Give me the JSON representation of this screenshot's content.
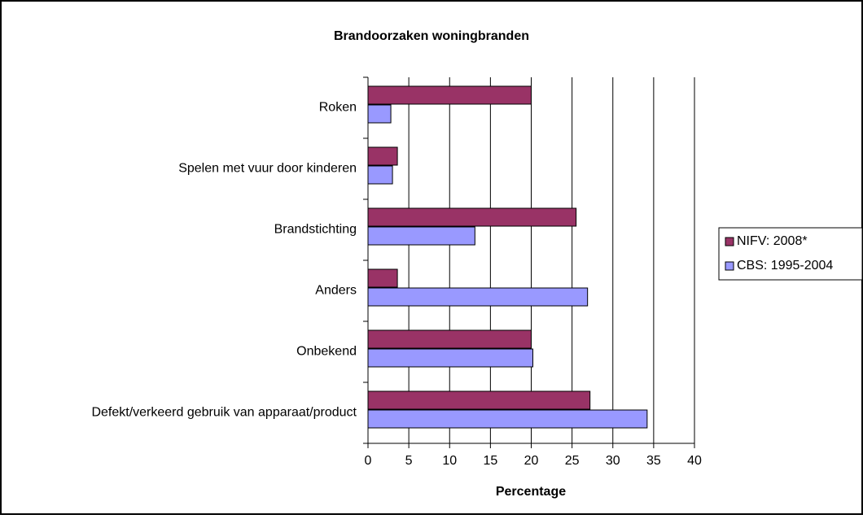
{
  "chart_data": {
    "type": "bar",
    "orientation": "horizontal",
    "title": "Brandoorzaken woningbranden",
    "x_label": "Percentage",
    "categories": [
      "Roken",
      "Spelen met vuur door kinderen",
      "Brandstichting",
      "Anders",
      "Onbekend",
      "Defekt/verkeerd gebruik van apparaat/product"
    ],
    "series": [
      {
        "name": "NIFV: 2008*",
        "color": "#993366",
        "values": [
          20,
          3.6,
          25.5,
          3.6,
          20,
          27.2
        ]
      },
      {
        "name": "CBS: 1995-2004",
        "color": "#9999ff",
        "values": [
          2.8,
          3.0,
          13.1,
          26.9,
          20.2,
          34.2
        ]
      }
    ],
    "xlim": [
      0,
      40
    ],
    "xticks": [
      0,
      5,
      10,
      15,
      20,
      25,
      30,
      35,
      40
    ],
    "grid": true,
    "legend": "right"
  }
}
